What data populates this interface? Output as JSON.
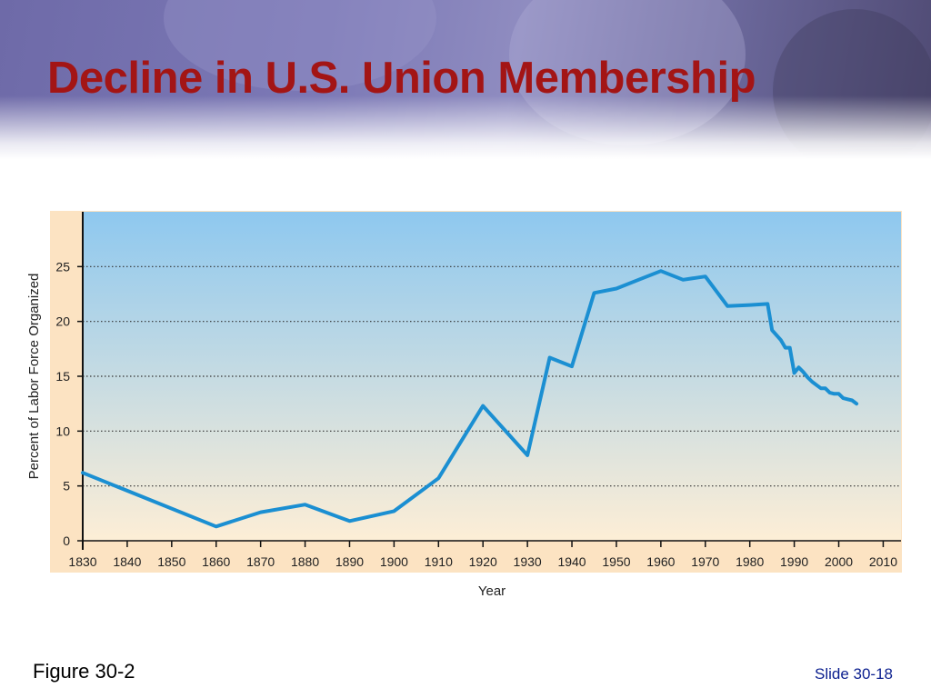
{
  "slide": {
    "title": "Decline in U.S. Union Membership",
    "figure_label": "Figure 30-2",
    "slide_number": "Slide 30-18"
  },
  "colors": {
    "title": "#a31515",
    "line": "#1b8fd2",
    "plot_top": "#8ec8ef",
    "plot_bottom": "#fdeed6",
    "margin": "#fce3c2",
    "slide_number": "#0b1f8f"
  },
  "chart_data": {
    "type": "line",
    "title": "",
    "xlabel": "Year",
    "ylabel": "Percent of Labor Force Organized",
    "xlim": [
      1830,
      2014
    ],
    "ylim": [
      0,
      30
    ],
    "x_ticks": [
      1830,
      1840,
      1850,
      1860,
      1870,
      1880,
      1890,
      1900,
      1910,
      1920,
      1930,
      1940,
      1950,
      1960,
      1970,
      1980,
      1990,
      2000,
      2010
    ],
    "y_ticks": [
      0,
      5,
      10,
      15,
      20,
      25
    ],
    "grid": "horizontal dotted at y ticks",
    "series": [
      {
        "x": [
          1830,
          1860,
          1870,
          1880,
          1890,
          1900,
          1910,
          1920,
          1930,
          1935,
          1940,
          1945,
          1950,
          1955,
          1960,
          1965,
          1970,
          1975,
          1980,
          1984,
          1985,
          1987,
          1988,
          1989,
          1990,
          1991,
          1992,
          1993,
          1994,
          1995,
          1996,
          1997,
          1998,
          1999,
          2000,
          2001,
          2002,
          2003,
          2004
        ],
        "y": [
          6.2,
          1.3,
          2.6,
          3.3,
          1.8,
          2.7,
          5.7,
          12.3,
          7.8,
          16.7,
          15.9,
          22.6,
          23.0,
          23.8,
          24.6,
          23.8,
          24.1,
          21.4,
          21.5,
          21.6,
          19.2,
          18.3,
          17.6,
          17.6,
          15.3,
          15.8,
          15.4,
          14.9,
          14.5,
          14.2,
          13.9,
          13.9,
          13.5,
          13.4,
          13.4,
          13.0,
          12.9,
          12.8,
          12.5
        ]
      }
    ]
  }
}
